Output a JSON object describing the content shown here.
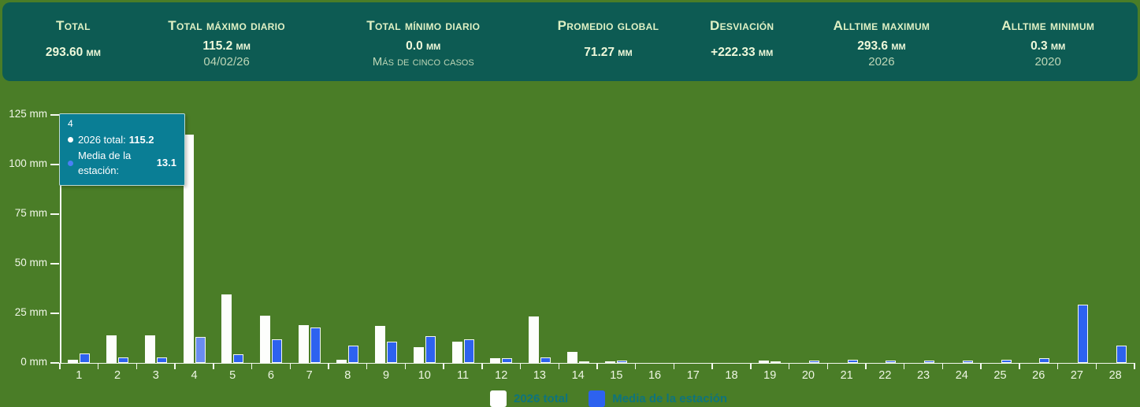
{
  "header": {
    "stats": [
      {
        "label": "Total",
        "value": "293.60 mm",
        "sub": ""
      },
      {
        "label": "Total máximo diario",
        "value": "115.2 mm",
        "sub": "04/02/26"
      },
      {
        "label": "Total mínimo diario",
        "value": "0.0 mm",
        "sub": "Más de cinco casos"
      },
      {
        "label": "Promedio global",
        "value": "71.27 mm",
        "sub": ""
      },
      {
        "label": "Desviación",
        "value": "+222.33 mm",
        "sub": ""
      },
      {
        "label": "Alltime maximum",
        "value": "293.6 mm",
        "sub": "2026"
      },
      {
        "label": "Alltime minimum",
        "value": "0.3 mm",
        "sub": "2020"
      }
    ]
  },
  "tooltip": {
    "title": "4",
    "rows": [
      {
        "label": "2026 total:",
        "value": "115.2"
      },
      {
        "label": "Media de la estación:",
        "value": "13.1"
      }
    ]
  },
  "legend": {
    "items": [
      {
        "label": "2026 total",
        "color": "#ffffff"
      },
      {
        "label": "Media de la estación",
        "color": "#2d62ef"
      }
    ]
  },
  "colors": {
    "background": "#4a7d27",
    "header_bg": "#0d5b53",
    "tooltip_bg": "#0a7e95",
    "bar_white": "#ffffff",
    "bar_blue": "#2d62ef",
    "bar_blue_highlight": "#6a8cf0"
  },
  "chart_data": {
    "type": "bar",
    "title": "",
    "xlabel": "",
    "ylabel": "mm",
    "ylim": [
      0,
      125
    ],
    "grid": false,
    "legend_position": "bottom",
    "highlighted_category": 4,
    "categories": [
      1,
      2,
      3,
      4,
      5,
      6,
      7,
      8,
      9,
      10,
      11,
      12,
      13,
      14,
      15,
      16,
      17,
      18,
      19,
      20,
      21,
      22,
      23,
      24,
      25,
      26,
      27,
      28
    ],
    "series": [
      {
        "name": "2026 total",
        "color": "#ffffff",
        "values": [
          1.4,
          13.8,
          13.8,
          115.2,
          34.4,
          24.0,
          19.0,
          1.6,
          18.8,
          8.0,
          10.6,
          2.4,
          23.6,
          5.6,
          0.4,
          0,
          0,
          0,
          1.0,
          0,
          0,
          0,
          0,
          0,
          0,
          0,
          0,
          0
        ]
      },
      {
        "name": "Media de la estación",
        "color": "#2d62ef",
        "values": [
          4.6,
          2.6,
          2.7,
          13.1,
          4.4,
          11.9,
          17.9,
          8.7,
          10.8,
          13.6,
          12.0,
          2.2,
          2.8,
          0.8,
          1.0,
          0,
          0,
          0,
          0.5,
          1.0,
          1.4,
          1.0,
          1.0,
          1.3,
          1.4,
          2.4,
          29.5,
          8.6
        ]
      }
    ],
    "yticks": [
      {
        "v": 0,
        "label": "0 mm"
      },
      {
        "v": 25,
        "label": "25 mm"
      },
      {
        "v": 50,
        "label": "50 mm"
      },
      {
        "v": 75,
        "label": "75 mm"
      },
      {
        "v": 100,
        "label": "100 mm"
      },
      {
        "v": 125,
        "label": "125 mm"
      }
    ]
  }
}
